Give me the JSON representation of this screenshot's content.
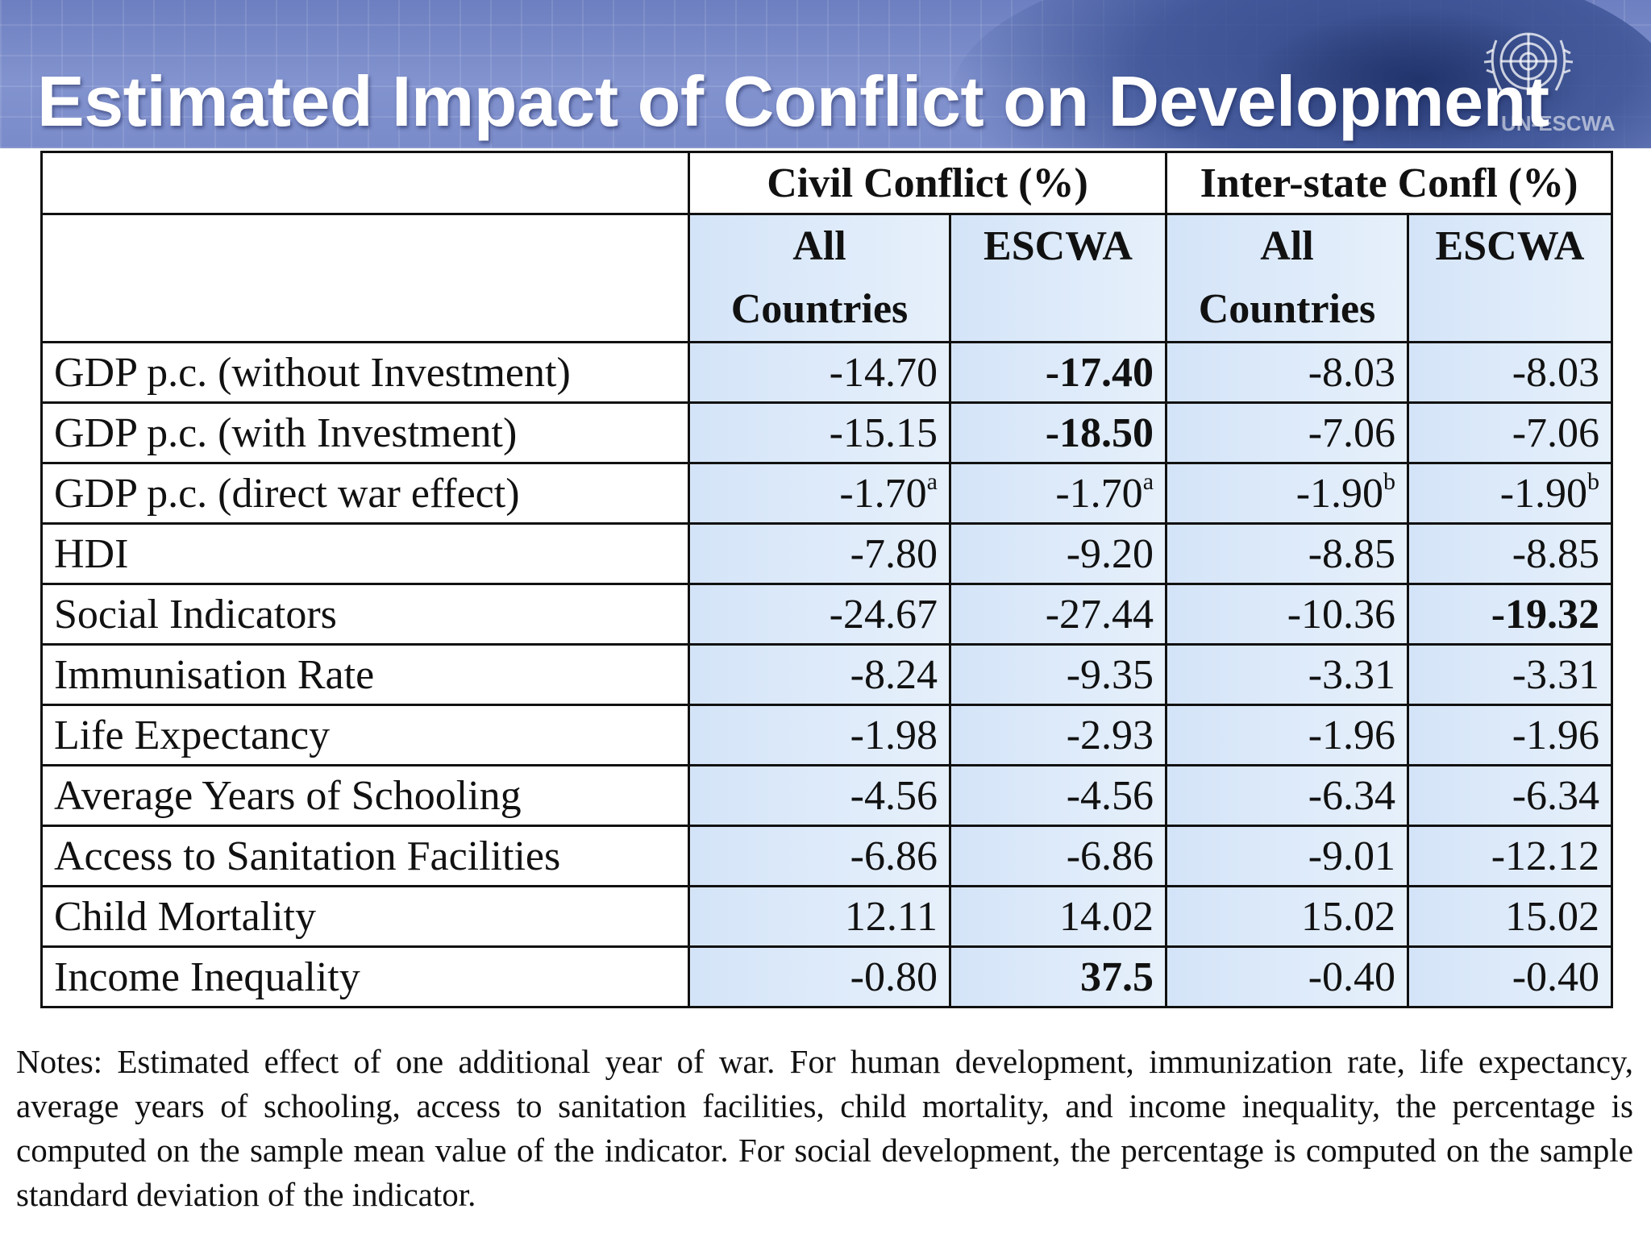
{
  "title": "Estimated Impact of Conflict on Development",
  "logo_text": "UN-ESCWA",
  "table": {
    "group_headers": [
      "Civil Conflict (%)",
      "Inter-state Confl (%)"
    ],
    "sub_headers": [
      "All Countries",
      "ESCWA",
      "All Countries",
      "ESCWA"
    ],
    "rows": [
      {
        "label": "GDP p.c. (without Investment)",
        "values": [
          "-14.70",
          "-17.40",
          "-8.03",
          "-8.03"
        ],
        "sups": [
          "",
          "",
          "",
          ""
        ]
      },
      {
        "label": "GDP p.c. (with Investment)",
        "values": [
          "-15.15",
          "-18.50",
          "-7.06",
          "-7.06"
        ],
        "sups": [
          "",
          "",
          "",
          ""
        ]
      },
      {
        "label": "GDP p.c. (direct war effect)",
        "values": [
          "-1.70",
          "-1.70",
          "-1.90",
          "-1.90"
        ],
        "sups": [
          "a",
          "a",
          "b",
          "b"
        ]
      },
      {
        "label": "HDI",
        "values": [
          "-7.80",
          "-9.20",
          "-8.85",
          "-8.85"
        ],
        "sups": [
          "",
          "",
          "",
          ""
        ]
      },
      {
        "label": "Social Indicators",
        "values": [
          "-24.67",
          "-27.44",
          "-10.36",
          "-19.32"
        ],
        "sups": [
          "",
          "",
          "",
          ""
        ]
      },
      {
        "label": "Immunisation Rate",
        "values": [
          "-8.24",
          "-9.35",
          "-3.31",
          "-3.31"
        ],
        "sups": [
          "",
          "",
          "",
          ""
        ]
      },
      {
        "label": "Life Expectancy",
        "values": [
          "-1.98",
          "-2.93",
          "-1.96",
          "-1.96"
        ],
        "sups": [
          "",
          "",
          "",
          ""
        ]
      },
      {
        "label": "Average Years of Schooling",
        "values": [
          "-4.56",
          "-4.56",
          "-6.34",
          "-6.34"
        ],
        "sups": [
          "",
          "",
          "",
          ""
        ]
      },
      {
        "label": "Access to Sanitation Facilities",
        "values": [
          "-6.86",
          "-6.86",
          "-9.01",
          "-12.12"
        ],
        "sups": [
          "",
          "",
          "",
          ""
        ]
      },
      {
        "label": "Child Mortality",
        "values": [
          "12.11",
          "14.02",
          "15.02",
          "15.02"
        ],
        "sups": [
          "",
          "",
          "",
          ""
        ]
      },
      {
        "label": "Income Inequality",
        "values": [
          "-0.80",
          "37.5",
          "-0.40",
          "-0.40"
        ],
        "sups": [
          "",
          "",
          "",
          ""
        ]
      }
    ]
  },
  "notes": "Notes: Estimated effect of one additional year of war. For human development, immunization rate, life expectancy, average years of schooling, access to sanitation facilities, child mortality, and income inequality, the percentage is computed on the sample mean value of the indicator. For social development, the percentage is computed on the sample standard deviation of the indicator."
}
